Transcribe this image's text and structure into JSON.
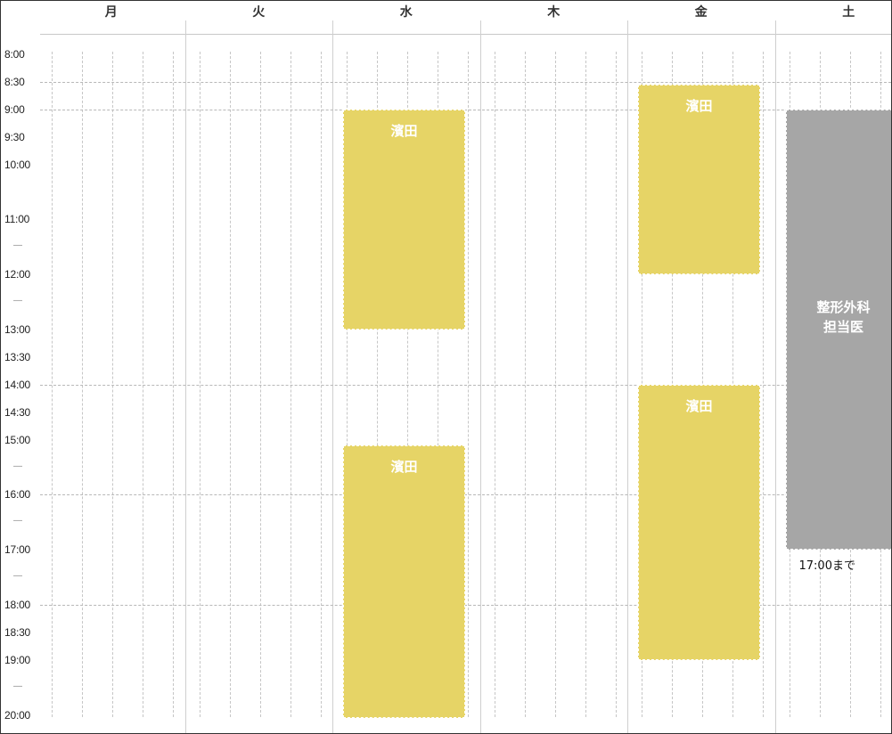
{
  "days": [
    "月",
    "火",
    "水",
    "木",
    "金",
    "土"
  ],
  "times": [
    {
      "label": "8:00",
      "major": false
    },
    {
      "label": "8:30",
      "major": true
    },
    {
      "label": "9:00",
      "major": true
    },
    {
      "label": "9:30",
      "major": false
    },
    {
      "label": "10:00",
      "major": false
    },
    {
      "label": "",
      "major": false
    },
    {
      "label": "11:00",
      "major": false
    },
    {
      "label": "—",
      "major": false
    },
    {
      "label": "12:00",
      "major": false
    },
    {
      "label": "—",
      "major": false
    },
    {
      "label": "13:00",
      "major": false
    },
    {
      "label": "13:30",
      "major": false
    },
    {
      "label": "14:00",
      "major": true
    },
    {
      "label": "14:30",
      "major": false
    },
    {
      "label": "15:00",
      "major": false
    },
    {
      "label": "—",
      "major": false
    },
    {
      "label": "16:00",
      "major": true
    },
    {
      "label": "—",
      "major": false
    },
    {
      "label": "17:00",
      "major": false
    },
    {
      "label": "—",
      "major": false
    },
    {
      "label": "18:00",
      "major": true
    },
    {
      "label": "18:30",
      "major": false
    },
    {
      "label": "19:00",
      "major": false
    },
    {
      "label": "—",
      "major": false
    },
    {
      "label": "20:00",
      "major": false
    }
  ],
  "blocks": [
    {
      "day": 2,
      "start": 2,
      "end": 10,
      "label": "濱田",
      "color": "yellow"
    },
    {
      "day": 2,
      "start": 14.2,
      "end": 24.1,
      "label": "濱田",
      "color": "yellow"
    },
    {
      "day": 4,
      "start": 1.1,
      "end": 8,
      "label": "濱田",
      "color": "yellow"
    },
    {
      "day": 4,
      "start": 12,
      "end": 22,
      "label": "濱田",
      "color": "yellow"
    },
    {
      "day": 5,
      "start": 2,
      "end": 18,
      "label": "整形外科\n担当医",
      "color": "gray"
    }
  ],
  "note": {
    "day": 5,
    "text": "17:00まで"
  },
  "colors": {
    "yellow": "#e6d466",
    "gray": "#a6a6a6"
  }
}
